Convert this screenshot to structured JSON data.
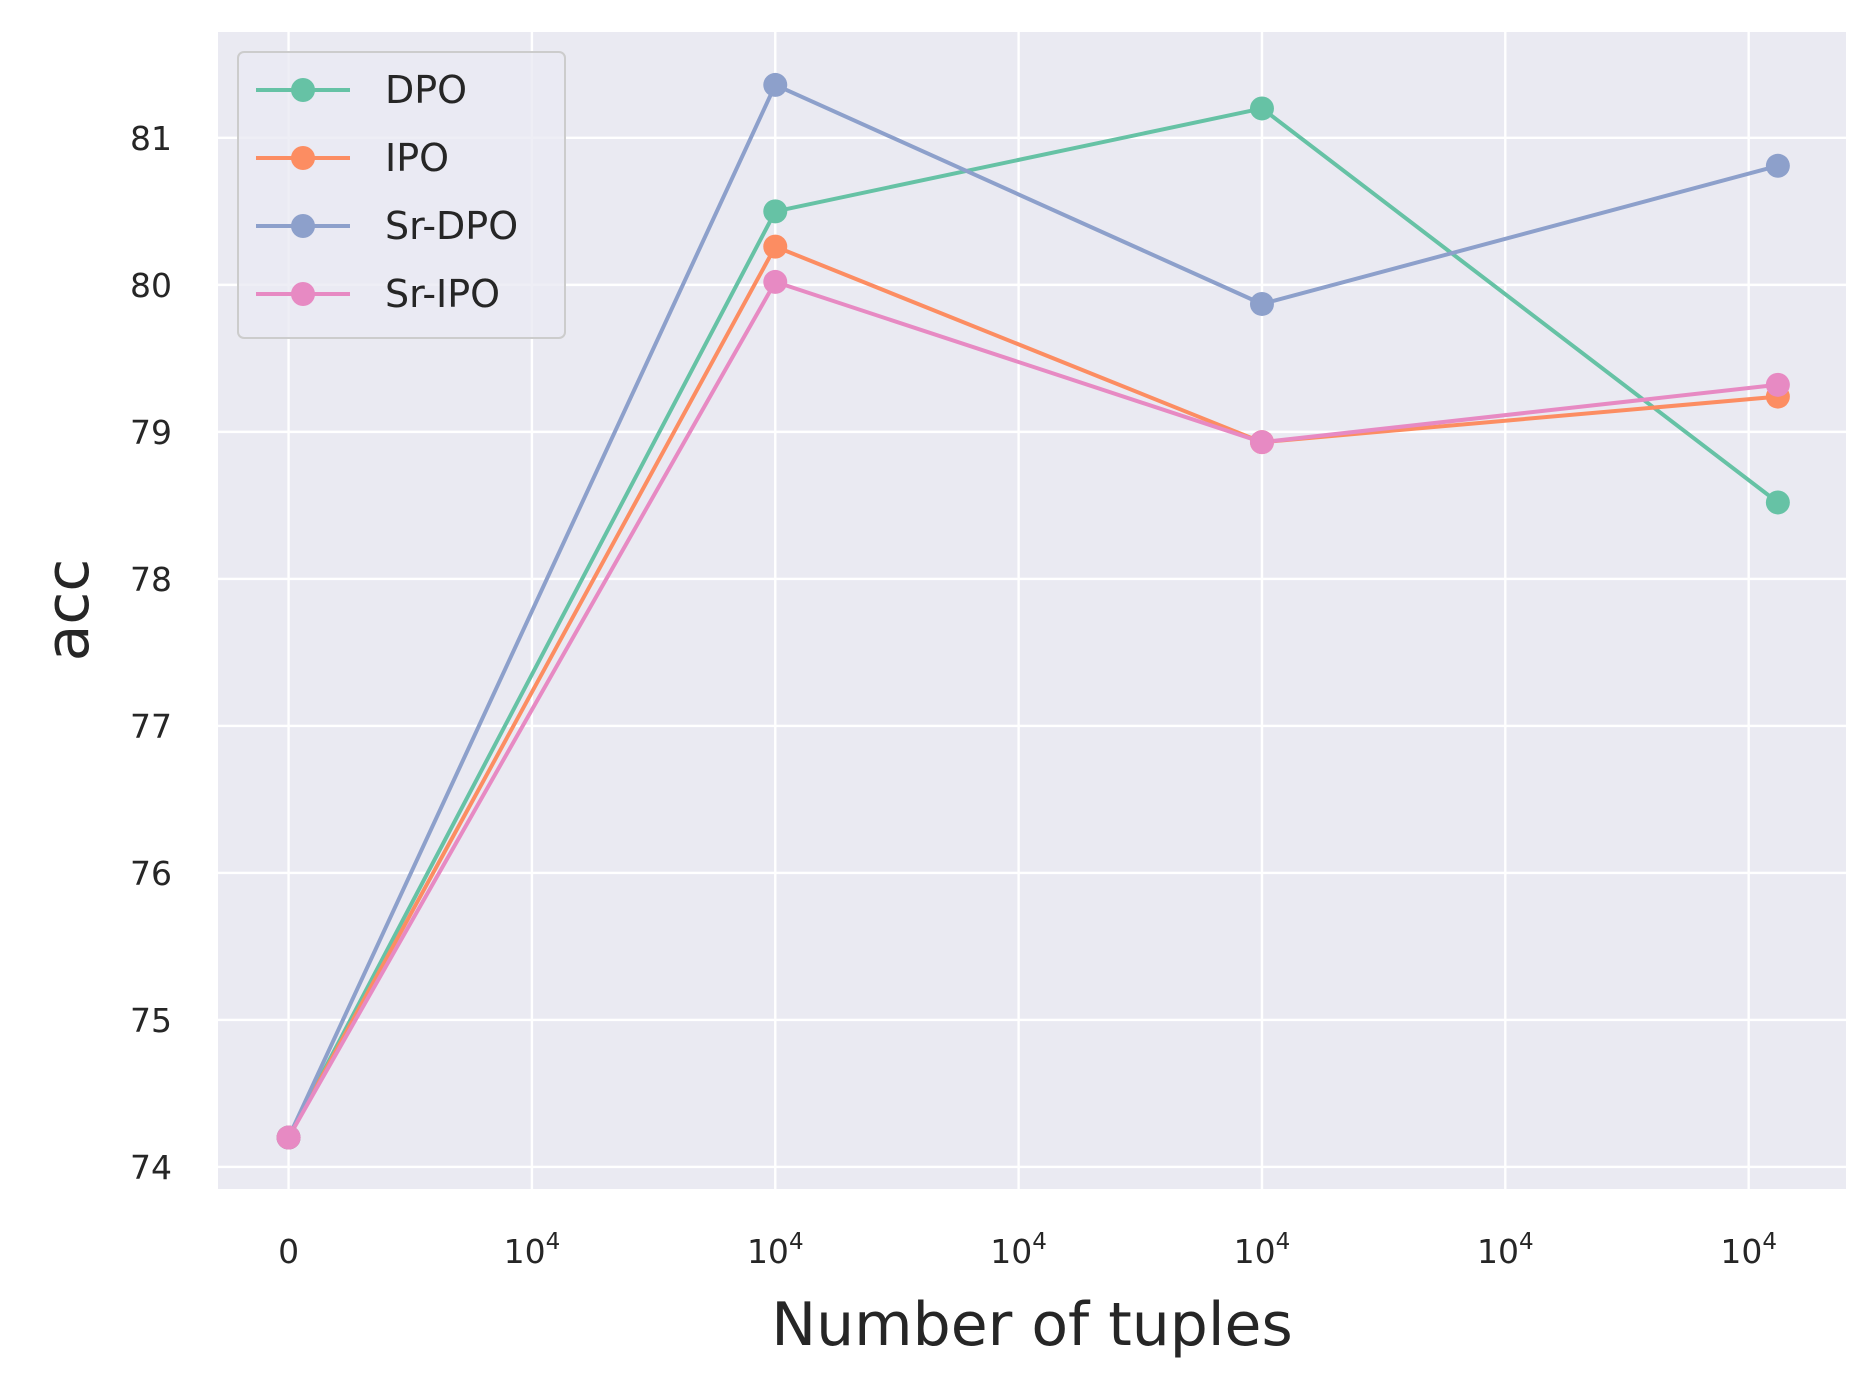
{
  "chart_data": {
    "type": "line",
    "title": "",
    "xlabel": "Number of tuples",
    "ylabel": "acc",
    "x_tick_labels": [
      {
        "base": "0",
        "exp": ""
      },
      {
        "base": "10",
        "exp": "4"
      },
      {
        "base": "10",
        "exp": "4"
      },
      {
        "base": "10",
        "exp": "4"
      },
      {
        "base": "10",
        "exp": "4"
      },
      {
        "base": "10",
        "exp": "4"
      },
      {
        "base": "10",
        "exp": "4"
      }
    ],
    "x_tick_positions": [
      0,
      1,
      2,
      3,
      4,
      5,
      6
    ],
    "x": [
      0,
      2,
      4,
      6.12
    ],
    "xlim": [
      -0.29,
      6.4
    ],
    "ylim": [
      73.85,
      81.72
    ],
    "yticks": [
      74,
      75,
      76,
      77,
      78,
      79,
      80,
      81
    ],
    "grid": true,
    "legend_position": "upper-left",
    "series": [
      {
        "name": "DPO",
        "color": "#66c2a5",
        "values": [
          74.2,
          80.5,
          81.2,
          78.52
        ]
      },
      {
        "name": "IPO",
        "color": "#fc8d62",
        "values": [
          74.2,
          80.26,
          78.93,
          79.24
        ]
      },
      {
        "name": "Sr-DPO",
        "color": "#8da0cb",
        "values": [
          74.2,
          81.36,
          79.87,
          80.81
        ]
      },
      {
        "name": "Sr-IPO",
        "color": "#e78ac3",
        "values": [
          74.2,
          80.02,
          78.93,
          79.32
        ]
      }
    ]
  }
}
